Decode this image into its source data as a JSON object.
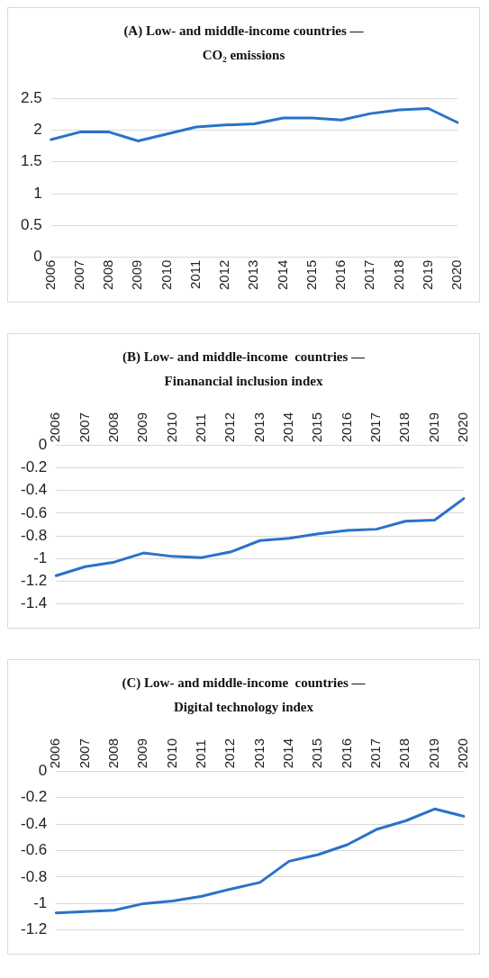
{
  "chart_data": [
    {
      "type": "line",
      "title": "(A) Low- and middle-income countries — CO₂ emissions",
      "categories": [
        "2006",
        "2007",
        "2008",
        "2009",
        "2010",
        "2011",
        "2012",
        "2013",
        "2014",
        "2015",
        "2016",
        "2017",
        "2018",
        "2019",
        "2020"
      ],
      "series": [
        {
          "color": "#2a72c9",
          "values": [
            1.85,
            1.97,
            1.97,
            1.83,
            1.94,
            2.05,
            2.08,
            2.1,
            2.19,
            2.19,
            2.16,
            2.26,
            2.32,
            2.34,
            2.12
          ]
        }
      ],
      "ylim": [
        0,
        2.5
      ],
      "yticks": [
        0,
        0.5,
        1,
        1.5,
        2,
        2.5
      ],
      "grid": "y",
      "legend": false,
      "marker": "none",
      "line_style": "solid"
    },
    {
      "type": "line",
      "title": "(B) Low- and middle-income  countries — Finanancial inclusion index",
      "categories": [
        "2006",
        "2007",
        "2008",
        "2009",
        "2010",
        "2011",
        "2012",
        "2013",
        "2014",
        "2015",
        "2016",
        "2017",
        "2018",
        "2019",
        "2020"
      ],
      "series": [
        {
          "color": "#2a72c9",
          "values": [
            -1.15,
            -1.07,
            -1.03,
            -0.95,
            -0.98,
            -0.99,
            -0.94,
            -0.84,
            -0.82,
            -0.78,
            -0.75,
            -0.74,
            -0.67,
            -0.66,
            -0.47
          ]
        }
      ],
      "ylim": [
        -1.4,
        0
      ],
      "yticks": [
        -1.4,
        -1.2,
        -1,
        -0.8,
        -0.6,
        -0.4,
        -0.2,
        0
      ],
      "grid": "y",
      "legend": false,
      "marker": "none",
      "line_style": "solid"
    },
    {
      "type": "line",
      "title": "(C) Low- and middle-income  countries — Digital technology index",
      "categories": [
        "2006",
        "2007",
        "2008",
        "2009",
        "2010",
        "2011",
        "2012",
        "2013",
        "2014",
        "2015",
        "2016",
        "2017",
        "2018",
        "2019",
        "2020"
      ],
      "series": [
        {
          "color": "#2a72c9",
          "values": [
            -1.07,
            -1.06,
            -1.05,
            -1.0,
            -0.98,
            -0.945,
            -0.89,
            -0.84,
            -0.68,
            -0.63,
            -0.555,
            -0.44,
            -0.375,
            -0.285,
            -0.34
          ]
        }
      ],
      "ylim": [
        -1.2,
        0
      ],
      "yticks": [
        -1.2,
        -1,
        -0.8,
        -0.6,
        -0.4,
        -0.2,
        0
      ],
      "grid": "y",
      "legend": false,
      "marker": "none",
      "line_style": "solid"
    }
  ]
}
